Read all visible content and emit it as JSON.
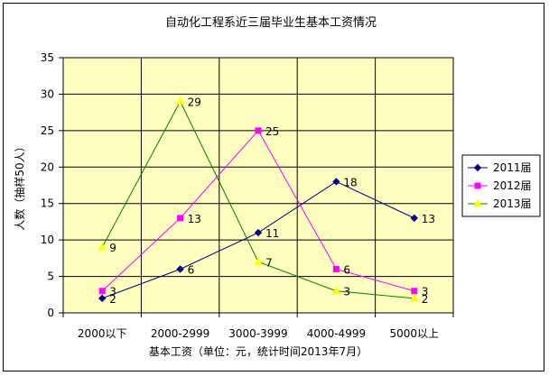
{
  "chart_data": {
    "type": "line",
    "title": "自动化工程系近三届毕业生基本工资情况",
    "xlabel": "基本工资（单位：元，统计时间2013年7月）",
    "ylabel": "人数（抽样50人）",
    "categories": [
      "2000以下",
      "2000-2999",
      "3000-3999",
      "4000-4999",
      "5000以上"
    ],
    "ylim": [
      0,
      35
    ],
    "yticks": [
      0,
      5,
      10,
      15,
      20,
      25,
      30,
      35
    ],
    "grid": true,
    "legend": "right",
    "series": [
      {
        "name": "2011届",
        "values": [
          2,
          6,
          11,
          18,
          13
        ],
        "color": "#000080",
        "marker": "diamond"
      },
      {
        "name": "2012届",
        "values": [
          3,
          13,
          25,
          6,
          3
        ],
        "color": "#FF00FF",
        "marker": "square"
      },
      {
        "name": "2013届",
        "values": [
          9,
          29,
          7,
          3,
          2
        ],
        "color": "#FFFF00",
        "line_color": "#008000",
        "marker": "triangle"
      }
    ]
  }
}
